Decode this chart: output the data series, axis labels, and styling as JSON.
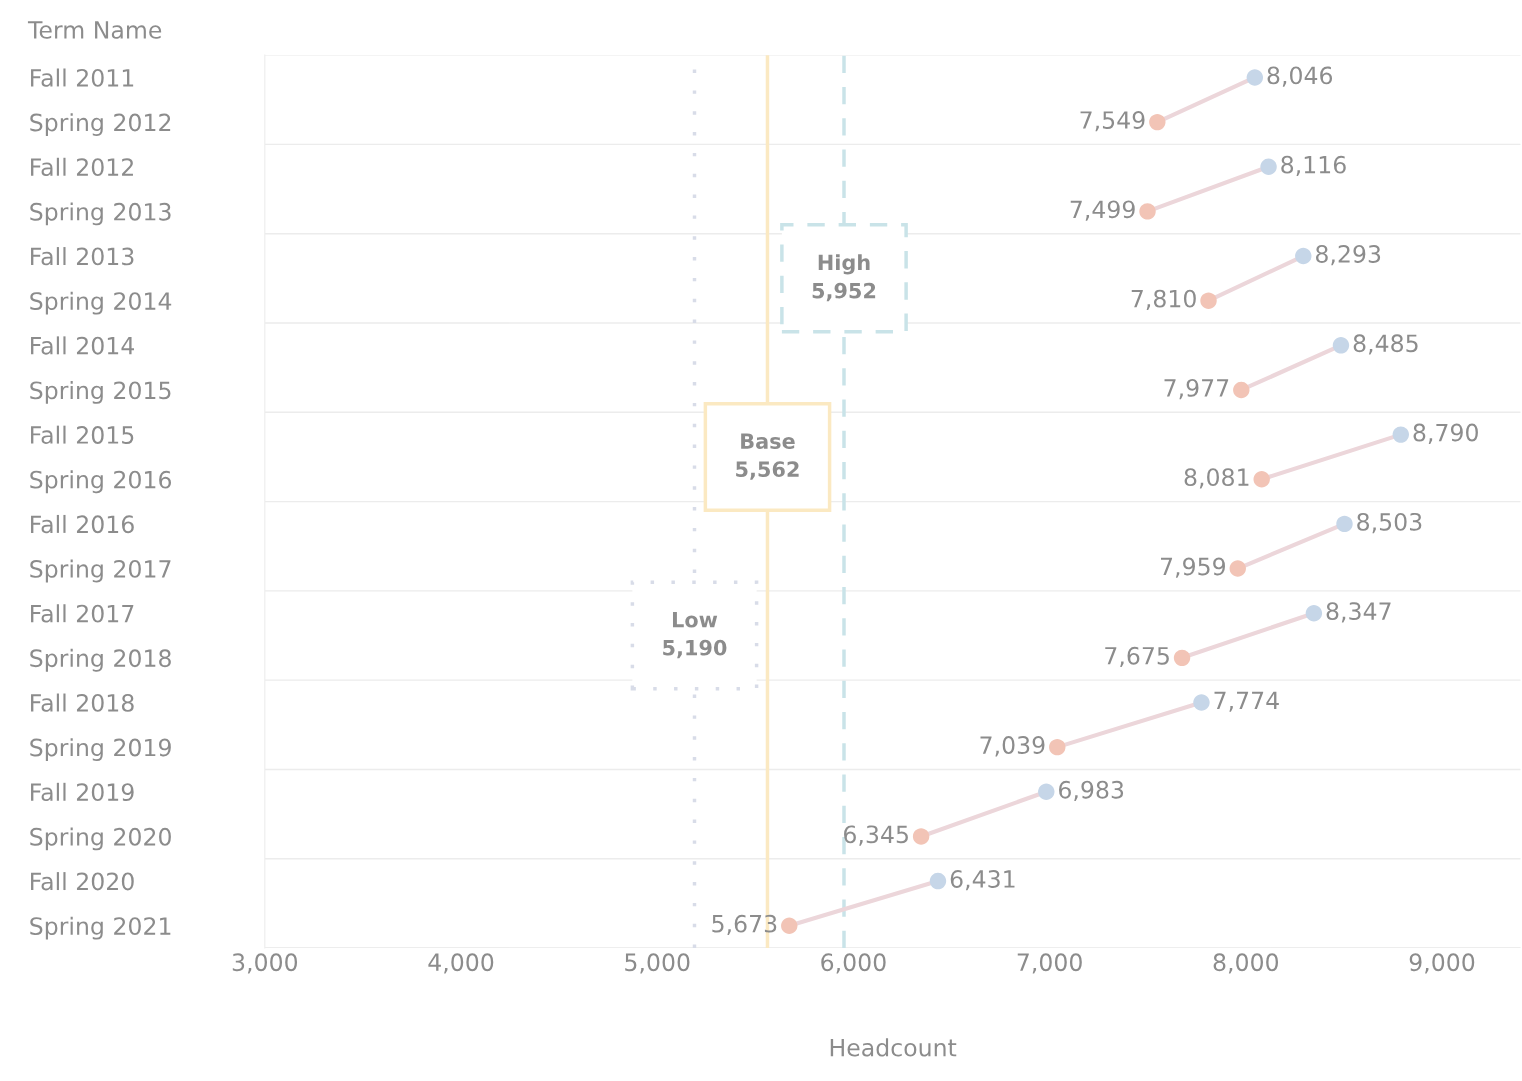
{
  "chart_data": {
    "type": "line",
    "orientation": "horizontal",
    "ylabel": "Term Name",
    "xlabel": "Headcount",
    "categories": [
      "Fall 2011",
      "Spring 2012",
      "Fall 2012",
      "Spring 2013",
      "Fall 2013",
      "Spring 2014",
      "Fall 2014",
      "Spring 2015",
      "Fall 2015",
      "Spring 2016",
      "Fall 2016",
      "Spring 2017",
      "Fall 2017",
      "Spring 2018",
      "Fall 2018",
      "Spring 2019",
      "Fall 2019",
      "Spring 2020",
      "Fall 2020",
      "Spring 2021"
    ],
    "xlim": [
      3000,
      9400
    ],
    "xticks": [
      {
        "value": 3000,
        "label": "3,000"
      },
      {
        "value": 4000,
        "label": "4,000"
      },
      {
        "value": 5000,
        "label": "5,000"
      },
      {
        "value": 6000,
        "label": "6,000"
      },
      {
        "value": 7000,
        "label": "7,000"
      },
      {
        "value": 8000,
        "label": "8,000"
      },
      {
        "value": 9000,
        "label": "9,000"
      }
    ],
    "series": [
      {
        "color": "#ecd6da",
        "colors": [
          "#c6d6e8",
          "#f2c4b6",
          null,
          null,
          null,
          null,
          null,
          null,
          null,
          null,
          null,
          null,
          null,
          null,
          null,
          null,
          null,
          null,
          null,
          null
        ],
        "values": [
          8046,
          7549,
          null,
          null,
          null,
          null,
          null,
          null,
          null,
          null,
          null,
          null,
          null,
          null,
          null,
          null,
          null,
          null,
          null,
          null
        ],
        "value_labels": [
          "8,046",
          "7,549",
          null,
          null,
          null,
          null,
          null,
          null,
          null,
          null,
          null,
          null,
          null,
          null,
          null,
          null,
          null,
          null,
          null,
          null
        ]
      },
      {
        "color": "#ecd6da",
        "colors": [
          null,
          null,
          "#c6d6e8",
          "#f2c4b6",
          null,
          null,
          null,
          null,
          null,
          null,
          null,
          null,
          null,
          null,
          null,
          null,
          null,
          null,
          null,
          null
        ],
        "values": [
          null,
          null,
          8116,
          7499,
          null,
          null,
          null,
          null,
          null,
          null,
          null,
          null,
          null,
          null,
          null,
          null,
          null,
          null,
          null,
          null
        ],
        "value_labels": [
          null,
          null,
          "8,116",
          "7,499",
          null,
          null,
          null,
          null,
          null,
          null,
          null,
          null,
          null,
          null,
          null,
          null,
          null,
          null,
          null,
          null
        ]
      },
      {
        "color": "#ecd6da",
        "colors": [
          null,
          null,
          null,
          null,
          "#c6d6e8",
          "#f2c4b6",
          null,
          null,
          null,
          null,
          null,
          null,
          null,
          null,
          null,
          null,
          null,
          null,
          null,
          null
        ],
        "values": [
          null,
          null,
          null,
          null,
          8293,
          7810,
          null,
          null,
          null,
          null,
          null,
          null,
          null,
          null,
          null,
          null,
          null,
          null,
          null,
          null
        ],
        "value_labels": [
          null,
          null,
          null,
          null,
          "8,293",
          "7,810",
          null,
          null,
          null,
          null,
          null,
          null,
          null,
          null,
          null,
          null,
          null,
          null,
          null,
          null
        ]
      },
      {
        "color": "#ecd6da",
        "colors": [
          null,
          null,
          null,
          null,
          null,
          null,
          "#c6d6e8",
          "#f2c4b6",
          null,
          null,
          null,
          null,
          null,
          null,
          null,
          null,
          null,
          null,
          null,
          null
        ],
        "values": [
          null,
          null,
          null,
          null,
          null,
          null,
          8485,
          7977,
          null,
          null,
          null,
          null,
          null,
          null,
          null,
          null,
          null,
          null,
          null,
          null
        ],
        "value_labels": [
          null,
          null,
          null,
          null,
          null,
          null,
          "8,485",
          "7,977",
          null,
          null,
          null,
          null,
          null,
          null,
          null,
          null,
          null,
          null,
          null,
          null
        ]
      },
      {
        "color": "#ecd6da",
        "colors": [
          null,
          null,
          null,
          null,
          null,
          null,
          null,
          null,
          "#c6d6e8",
          "#f2c4b6",
          null,
          null,
          null,
          null,
          null,
          null,
          null,
          null,
          null,
          null
        ],
        "values": [
          null,
          null,
          null,
          null,
          null,
          null,
          null,
          null,
          8790,
          8081,
          null,
          null,
          null,
          null,
          null,
          null,
          null,
          null,
          null,
          null
        ],
        "value_labels": [
          null,
          null,
          null,
          null,
          null,
          null,
          null,
          null,
          "8,790",
          "8,081",
          null,
          null,
          null,
          null,
          null,
          null,
          null,
          null,
          null,
          null
        ]
      },
      {
        "color": "#ecd6da",
        "colors": [
          null,
          null,
          null,
          null,
          null,
          null,
          null,
          null,
          null,
          null,
          "#c6d6e8",
          "#f2c4b6",
          null,
          null,
          null,
          null,
          null,
          null,
          null,
          null
        ],
        "values": [
          null,
          null,
          null,
          null,
          null,
          null,
          null,
          null,
          null,
          null,
          8503,
          7959,
          null,
          null,
          null,
          null,
          null,
          null,
          null,
          null
        ],
        "value_labels": [
          null,
          null,
          null,
          null,
          null,
          null,
          null,
          null,
          null,
          null,
          "8,503",
          "7,959",
          null,
          null,
          null,
          null,
          null,
          null,
          null,
          null
        ]
      },
      {
        "color": "#ecd6da",
        "colors": [
          null,
          null,
          null,
          null,
          null,
          null,
          null,
          null,
          null,
          null,
          null,
          null,
          "#c6d6e8",
          "#f2c4b6",
          null,
          null,
          null,
          null,
          null,
          null
        ],
        "values": [
          null,
          null,
          null,
          null,
          null,
          null,
          null,
          null,
          null,
          null,
          null,
          null,
          8347,
          7675,
          null,
          null,
          null,
          null,
          null,
          null
        ],
        "value_labels": [
          null,
          null,
          null,
          null,
          null,
          null,
          null,
          null,
          null,
          null,
          null,
          null,
          "8,347",
          "7,675",
          null,
          null,
          null,
          null,
          null,
          null
        ]
      },
      {
        "color": "#ecd6da",
        "colors": [
          null,
          null,
          null,
          null,
          null,
          null,
          null,
          null,
          null,
          null,
          null,
          null,
          null,
          null,
          "#c6d6e8",
          "#f2c4b6",
          null,
          null,
          null,
          null
        ],
        "values": [
          null,
          null,
          null,
          null,
          null,
          null,
          null,
          null,
          null,
          null,
          null,
          null,
          null,
          null,
          7774,
          7039,
          null,
          null,
          null,
          null
        ],
        "value_labels": [
          null,
          null,
          null,
          null,
          null,
          null,
          null,
          null,
          null,
          null,
          null,
          null,
          null,
          null,
          "7,774",
          "7,039",
          null,
          null,
          null,
          null
        ]
      },
      {
        "color": "#ecd6da",
        "colors": [
          null,
          null,
          null,
          null,
          null,
          null,
          null,
          null,
          null,
          null,
          null,
          null,
          null,
          null,
          null,
          null,
          "#c6d6e8",
          "#f2c4b6",
          null,
          null
        ],
        "values": [
          null,
          null,
          null,
          null,
          null,
          null,
          null,
          null,
          null,
          null,
          null,
          null,
          null,
          null,
          null,
          null,
          6983,
          6345,
          null,
          null
        ],
        "value_labels": [
          null,
          null,
          null,
          null,
          null,
          null,
          null,
          null,
          null,
          null,
          null,
          null,
          null,
          null,
          null,
          null,
          "6,983",
          "6,345",
          null,
          null
        ]
      },
      {
        "color": "#ecd6da",
        "colors": [
          null,
          null,
          null,
          null,
          null,
          null,
          null,
          null,
          null,
          null,
          null,
          null,
          null,
          null,
          null,
          null,
          null,
          null,
          "#c6d6e8",
          "#f2c4b6"
        ],
        "values": [
          null,
          null,
          null,
          null,
          null,
          null,
          null,
          null,
          null,
          null,
          null,
          null,
          null,
          null,
          null,
          null,
          null,
          null,
          6431,
          5673
        ],
        "value_labels": [
          null,
          null,
          null,
          null,
          null,
          null,
          null,
          null,
          null,
          null,
          null,
          null,
          null,
          null,
          null,
          null,
          null,
          null,
          "6,431",
          "5,673"
        ]
      }
    ],
    "ref_lines": [
      {
        "axis": "x",
        "value": 5190,
        "label": "Low\n5,190",
        "color": "#d8dce8",
        "line_style": "dotted"
      },
      {
        "axis": "x",
        "value": 5562,
        "label": "Base\n5,562",
        "color": "#fbe9c2",
        "line_style": "solid"
      },
      {
        "axis": "x",
        "value": 5952,
        "label": "High\n5,952",
        "color": "#c9e3e8",
        "line_style": "dashed"
      }
    ],
    "grid": "y",
    "marker": "circle"
  }
}
